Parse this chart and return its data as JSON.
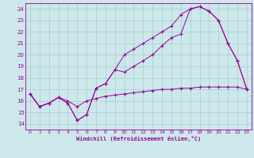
{
  "xlabel": "Windchill (Refroidissement éolien,°C)",
  "line_color": "#990099",
  "bg_color": "#cce8ea",
  "grid_color": "#aacccc",
  "x_ticks": [
    0,
    1,
    2,
    3,
    4,
    5,
    6,
    7,
    8,
    9,
    10,
    11,
    12,
    13,
    14,
    15,
    16,
    17,
    18,
    19,
    20,
    21,
    22,
    23
  ],
  "y_ticks": [
    14,
    15,
    16,
    17,
    18,
    19,
    20,
    21,
    22,
    23,
    24
  ],
  "xlim": [
    -0.5,
    23.5
  ],
  "ylim": [
    13.5,
    24.5
  ],
  "line1_x": [
    0,
    1,
    2,
    3,
    4,
    5,
    6,
    7,
    8,
    9,
    10,
    11,
    12,
    13,
    14,
    15,
    16,
    17,
    18,
    19,
    20,
    21,
    22,
    23
  ],
  "line1_y": [
    16.6,
    15.5,
    15.8,
    16.3,
    15.8,
    14.3,
    14.8,
    17.1,
    17.5,
    18.7,
    18.5,
    19.0,
    19.5,
    20.0,
    20.8,
    21.5,
    21.8,
    24.0,
    24.2,
    23.8,
    23.0,
    21.0,
    19.5,
    17.0
  ],
  "line2_x": [
    0,
    1,
    2,
    3,
    4,
    5,
    6,
    7,
    8,
    9,
    10,
    11,
    12,
    13,
    14,
    15,
    16,
    17,
    18,
    19,
    20,
    21,
    22,
    23
  ],
  "line2_y": [
    16.6,
    15.5,
    15.8,
    16.3,
    15.8,
    14.3,
    14.8,
    17.1,
    17.5,
    18.7,
    20.0,
    20.5,
    21.0,
    21.5,
    22.0,
    22.5,
    23.5,
    24.0,
    24.2,
    23.8,
    23.0,
    21.0,
    19.5,
    17.0
  ],
  "line3_x": [
    0,
    1,
    2,
    3,
    4,
    5,
    6,
    7,
    8,
    9,
    10,
    11,
    12,
    13,
    14,
    15,
    16,
    17,
    18,
    19,
    20,
    21,
    22,
    23
  ],
  "line3_y": [
    16.6,
    15.5,
    15.8,
    16.3,
    16.0,
    15.5,
    16.0,
    16.2,
    16.4,
    16.5,
    16.6,
    16.7,
    16.8,
    16.9,
    17.0,
    17.0,
    17.1,
    17.1,
    17.2,
    17.2,
    17.2,
    17.2,
    17.2,
    17.0
  ]
}
